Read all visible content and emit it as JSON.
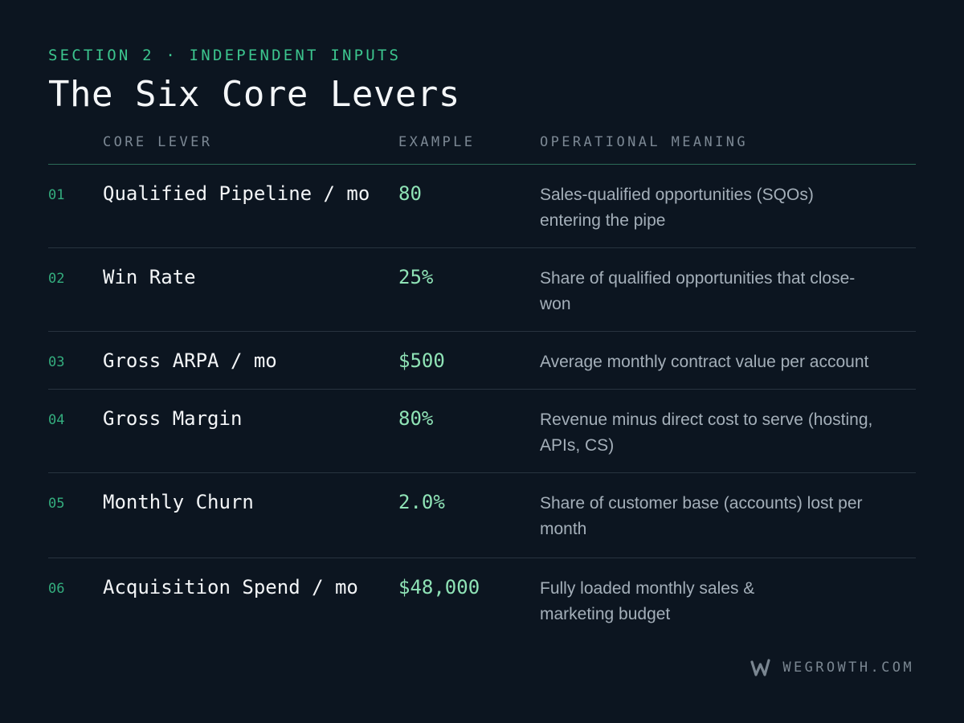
{
  "header": {
    "section_label": "SECTION 2 · INDEPENDENT INPUTS",
    "title": "The Six Core Levers"
  },
  "table": {
    "columns": {
      "lever": "CORE LEVER",
      "example": "EXAMPLE",
      "meaning": "OPERATIONAL MEANING"
    },
    "rows": [
      {
        "num": "01",
        "lever": "Qualified Pipeline / mo",
        "example": "80",
        "meaning": "Sales-qualified opportunities (SQOs) entering the pipe"
      },
      {
        "num": "02",
        "lever": "Win Rate",
        "example": "25%",
        "meaning": "Share of qualified opportunities that close-won"
      },
      {
        "num": "03",
        "lever": "Gross ARPA / mo",
        "example": "$500",
        "meaning": "Average monthly contract value per account"
      },
      {
        "num": "04",
        "lever": "Gross Margin",
        "example": "80%",
        "meaning": "Revenue minus direct cost to serve (hosting, APIs, CS)"
      },
      {
        "num": "05",
        "lever": "Monthly Churn",
        "example": "2.0%",
        "meaning": "Share of customer base (accounts) lost per month"
      },
      {
        "num": "06",
        "lever": "Acquisition Spend / mo",
        "example": "$48,000",
        "meaning": "Fully loaded monthly sales & marketing budget"
      }
    ]
  },
  "footer": {
    "brand": "WEGROWTH.COM",
    "logo_icon": "wegrowth-w-logo-icon"
  },
  "colors": {
    "background": "#0c1520",
    "accent": "#3cc58e",
    "example_value": "#8fe3b6"
  }
}
